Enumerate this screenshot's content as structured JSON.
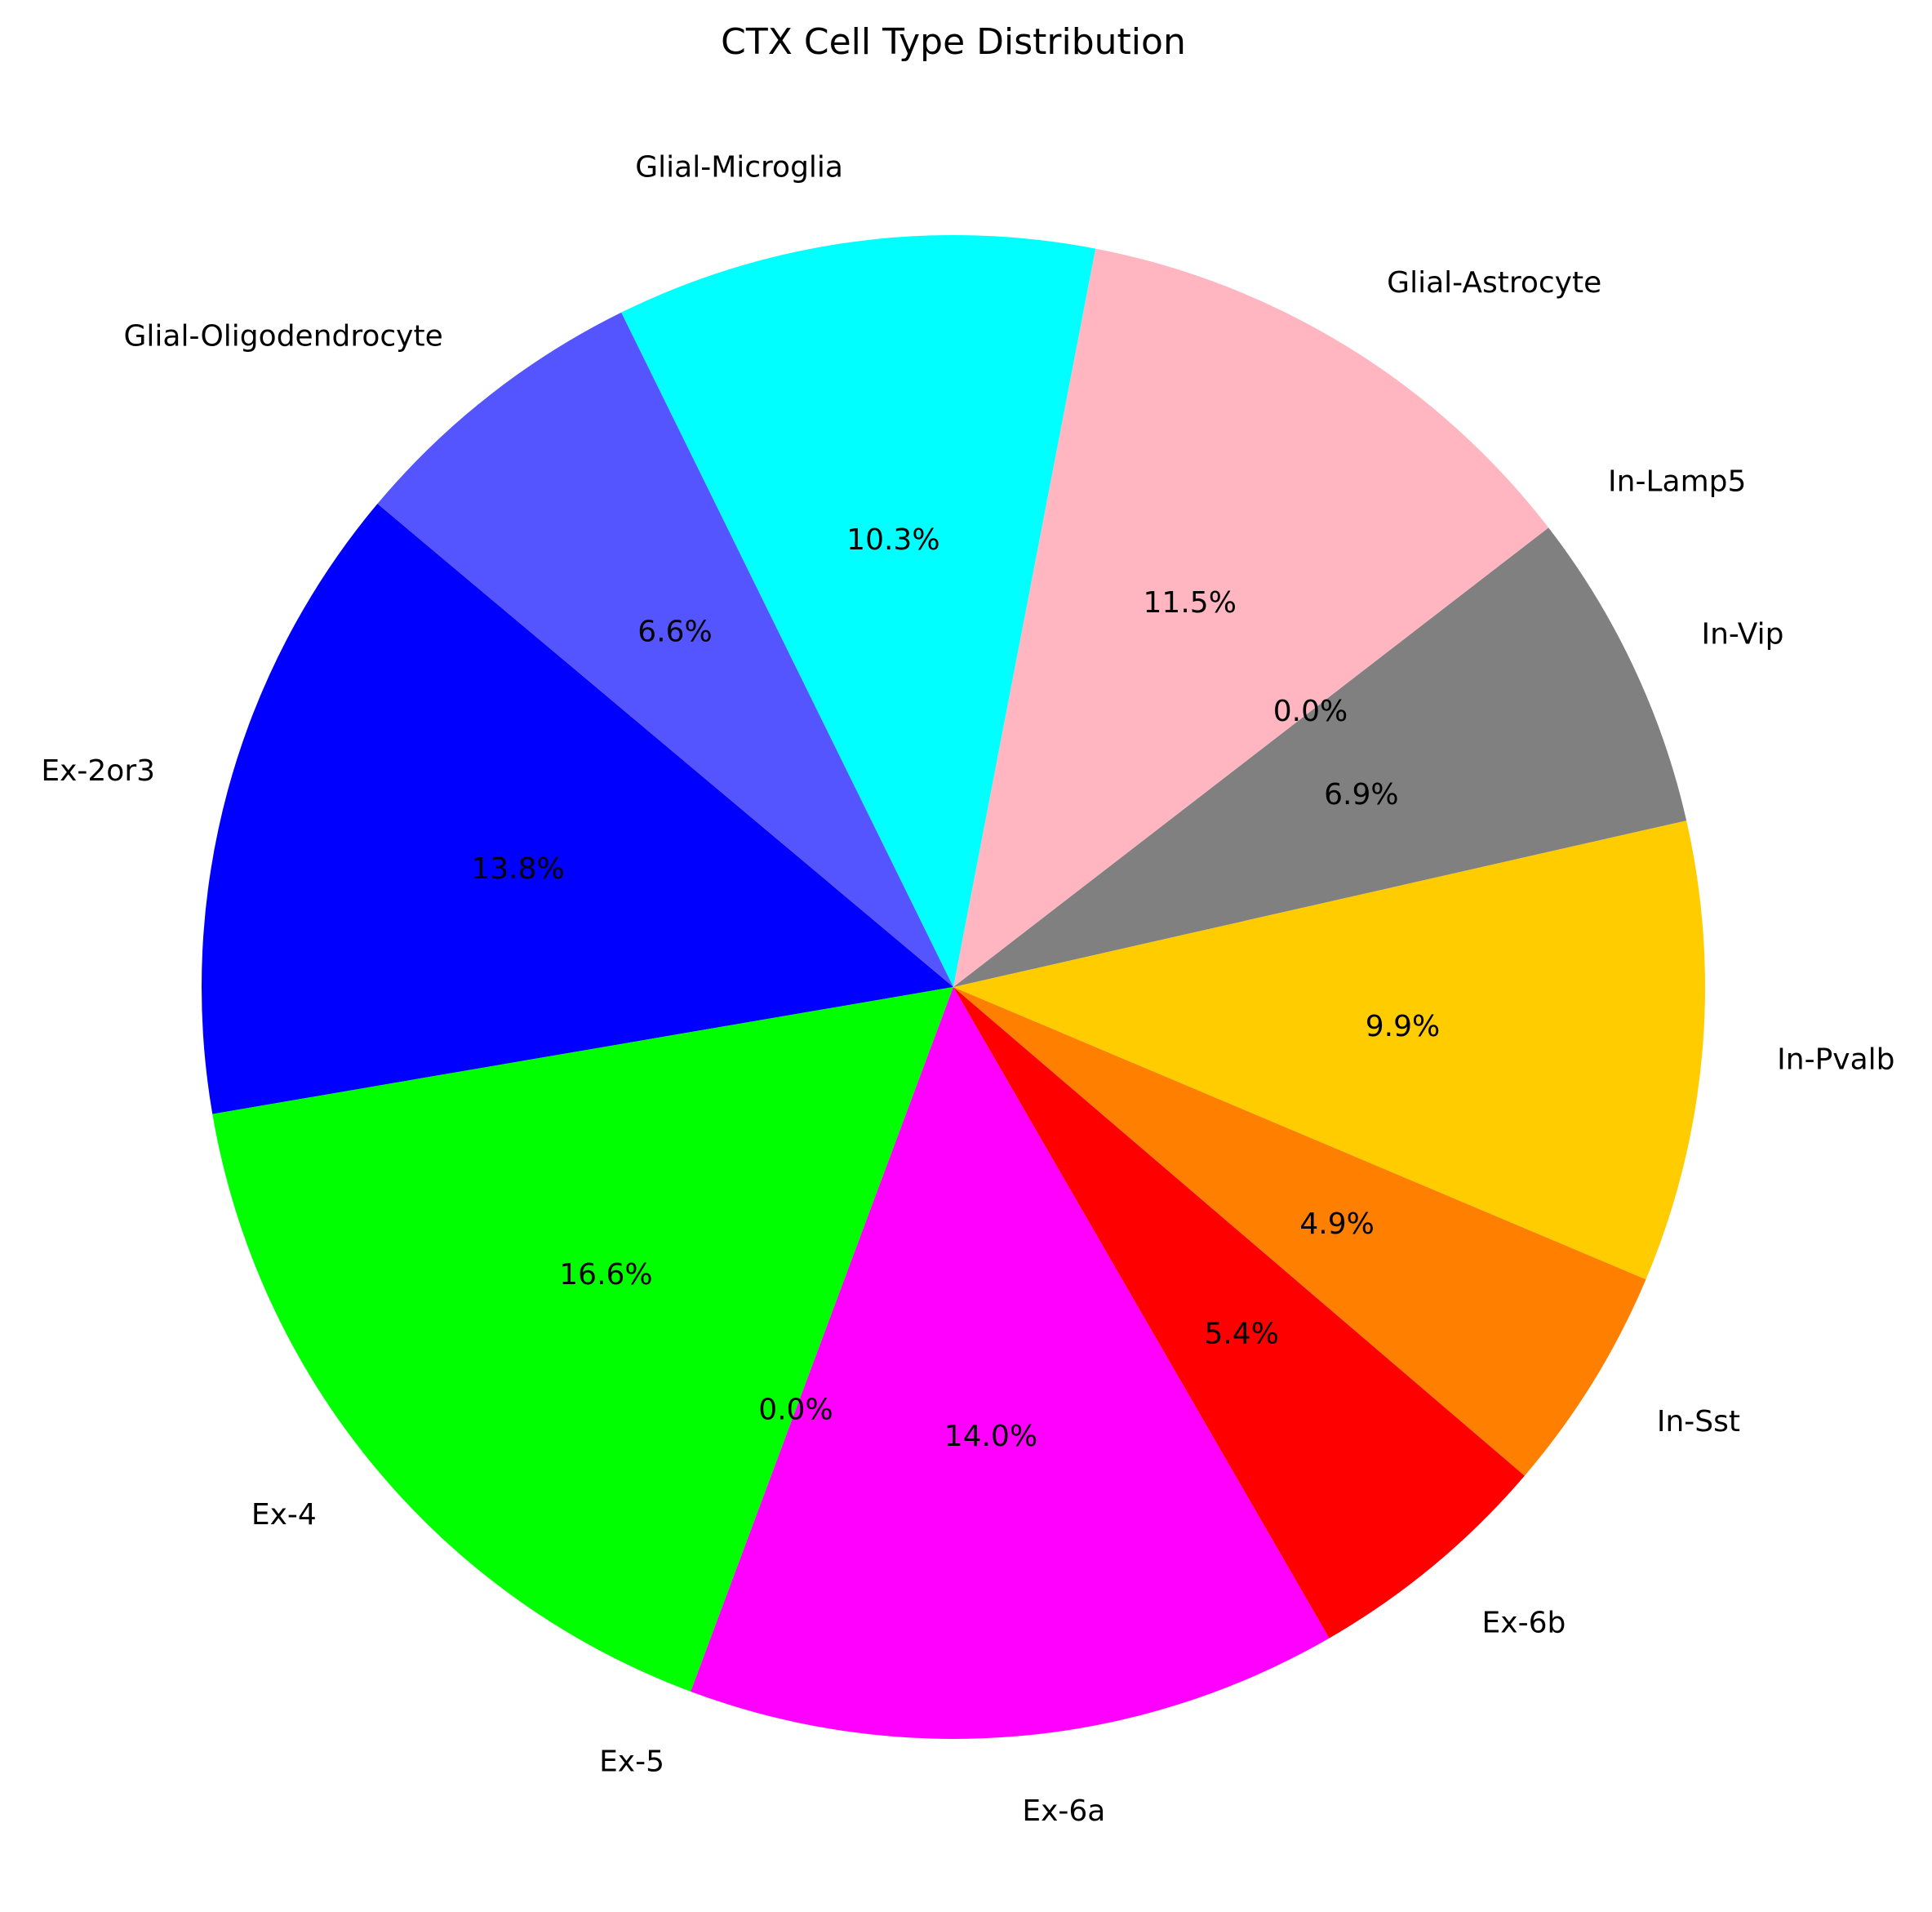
{
  "chart_data": {
    "type": "pie",
    "title": "CTX Cell Type Distribution",
    "start_angle_deg": 140,
    "direction": "counterclockwise",
    "slices": [
      {
        "label": "Ex-2or3",
        "value": 13.8,
        "pct_text": "13.8%",
        "color": "#0000FF"
      },
      {
        "label": "Ex-4",
        "value": 16.6,
        "pct_text": "16.6%",
        "color": "#00FF00"
      },
      {
        "label": "Ex-5",
        "value": 0.0,
        "pct_text": "0.0%",
        "color": "#00FF00"
      },
      {
        "label": "Ex-6a",
        "value": 14.0,
        "pct_text": "14.0%",
        "color": "#FF00FF"
      },
      {
        "label": "Ex-6b",
        "value": 5.4,
        "pct_text": "5.4%",
        "color": "#FF0000"
      },
      {
        "label": "In-Sst",
        "value": 4.9,
        "pct_text": "4.9%",
        "color": "#FF8000"
      },
      {
        "label": "In-Pvalb",
        "value": 9.9,
        "pct_text": "9.9%",
        "color": "#FFCC00"
      },
      {
        "label": "In-Vip",
        "value": 6.9,
        "pct_text": "6.9%",
        "color": "#808080"
      },
      {
        "label": "In-Lamp5",
        "value": 0.0,
        "pct_text": "0.0%",
        "color": "#808080"
      },
      {
        "label": "Glial-Astrocyte",
        "value": 11.5,
        "pct_text": "11.5%",
        "color": "#FFB6C1"
      },
      {
        "label": "Glial-Microglia",
        "value": 10.3,
        "pct_text": "10.3%",
        "color": "#00FFFF"
      },
      {
        "label": "Glial-Oligodendrocyte",
        "value": 6.6,
        "pct_text": "6.6%",
        "color": "#5555FF"
      }
    ]
  }
}
